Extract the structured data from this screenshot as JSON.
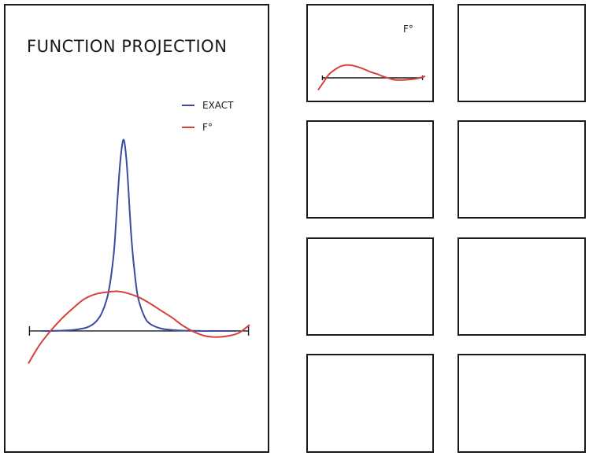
{
  "main": {
    "title": "FUNCTION PROJECTION",
    "legend": [
      {
        "label": "EXACT",
        "color": "#3b4ba0"
      },
      {
        "label": "F°",
        "color": "#d6403a"
      }
    ]
  },
  "thumb": {
    "legend": "F°"
  },
  "chart_data": [
    {
      "type": "line",
      "title": "FUNCTION PROJECTION",
      "xlabel": "",
      "ylabel": "",
      "xlim": [
        -1,
        1
      ],
      "ylim": [
        -0.17,
        1.0
      ],
      "grid": false,
      "legend_position": "top-right",
      "series": [
        {
          "name": "EXACT",
          "color": "#3b4ba0",
          "x": [
            -0.88,
            -0.8,
            -0.7,
            -0.6,
            -0.5,
            -0.45,
            -0.4,
            -0.36,
            -0.33,
            -0.3,
            -0.28,
            -0.26,
            -0.24,
            -0.22,
            -0.2,
            -0.18,
            -0.16,
            -0.14,
            -0.12,
            -0.1,
            -0.08,
            -0.06,
            -0.04,
            -0.02,
            0.0,
            0.05,
            0.1,
            0.2,
            0.3,
            0.4,
            0.5,
            0.6,
            0.7,
            0.8,
            0.88
          ],
          "y": [
            0.0,
            0.0,
            0.002,
            0.005,
            0.013,
            0.022,
            0.04,
            0.065,
            0.095,
            0.14,
            0.18,
            0.24,
            0.32,
            0.43,
            0.6,
            0.76,
            0.88,
            0.94,
            0.88,
            0.74,
            0.55,
            0.4,
            0.29,
            0.2,
            0.145,
            0.07,
            0.035,
            0.012,
            0.005,
            0.002,
            0.001,
            0.0,
            0.0,
            0.0,
            0.0
          ]
        },
        {
          "name": "F°",
          "color": "#d6403a",
          "x": [
            -1.0,
            -0.9,
            -0.8,
            -0.7,
            -0.6,
            -0.5,
            -0.4,
            -0.3,
            -0.2,
            -0.1,
            0.0,
            0.1,
            0.2,
            0.3,
            0.4,
            0.5,
            0.6,
            0.7,
            0.8,
            0.9,
            1.0
          ],
          "y": [
            -0.16,
            -0.07,
            0.0,
            0.06,
            0.11,
            0.155,
            0.18,
            0.19,
            0.195,
            0.185,
            0.165,
            0.135,
            0.1,
            0.065,
            0.025,
            -0.005,
            -0.025,
            -0.03,
            -0.025,
            -0.01,
            0.03
          ]
        }
      ]
    },
    {
      "type": "line",
      "title": "",
      "xlim": [
        -1,
        1
      ],
      "ylim": [
        -0.3,
        0.3
      ],
      "legend_position": "top-right",
      "series": [
        {
          "name": "F°",
          "color": "#d6403a",
          "x": [
            -1.0,
            -0.9,
            -0.8,
            -0.7,
            -0.6,
            -0.5,
            -0.4,
            -0.3,
            -0.2,
            -0.1,
            0.0,
            0.1,
            0.2,
            0.3,
            0.4,
            0.5,
            0.6,
            0.7,
            0.8,
            0.9,
            1.0
          ],
          "y": [
            -0.11,
            -0.04,
            0.03,
            0.07,
            0.1,
            0.115,
            0.115,
            0.105,
            0.09,
            0.07,
            0.05,
            0.035,
            0.015,
            0.0,
            -0.015,
            -0.02,
            -0.02,
            -0.015,
            -0.01,
            0.0,
            0.015
          ]
        }
      ]
    }
  ]
}
